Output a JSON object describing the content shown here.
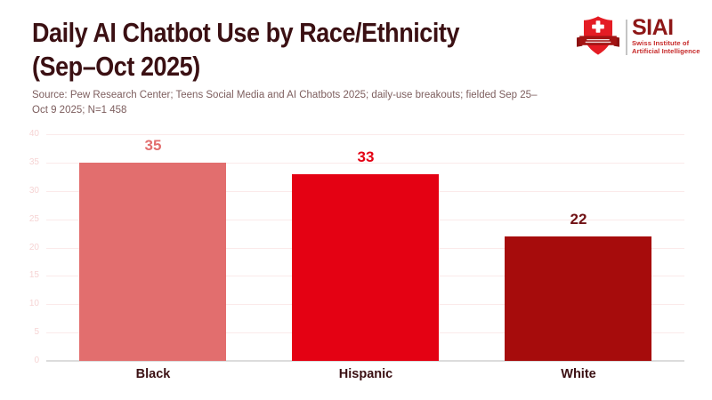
{
  "header": {
    "title_line1": "Daily AI Chatbot Use by Race/Ethnicity",
    "title_line2": "(Sep–Oct 2025)",
    "source_line1": "Source: Pew Research Center; Teens Social Media and AI Chatbots 2025; daily-use breakouts; fielded Sep 25–",
    "source_line2": "Oct 9 2025; N=1 458"
  },
  "logo": {
    "acronym": "SIAI",
    "name_line1": "Swiss Institute of",
    "name_line2": "Artificial Intelligence",
    "shield_icon": "swiss-shield-cross-icon",
    "colors": {
      "shield_red": "#e41c24",
      "ribbon_dark_red": "#a31414",
      "acronym_dark_red": "#8e1717",
      "subtitle_red": "#c62828"
    }
  },
  "chart_data": {
    "type": "bar",
    "title": "Daily AI Chatbot Use by Race/Ethnicity (Sep–Oct 2025)",
    "categories": [
      "Black",
      "Hispanic",
      "White"
    ],
    "values": [
      35,
      33,
      22
    ],
    "value_unit": "percent",
    "bar_colors": [
      "#e26e6e",
      "#e40113",
      "#a60c0c"
    ],
    "value_label_colors": [
      "#e26e6e",
      "#e40113",
      "#701114"
    ],
    "xlabel": "",
    "ylabel": "",
    "ylim": [
      0,
      40
    ],
    "ytick_step": 5,
    "grid": true,
    "grid_color": "#fbeaea",
    "tick_label_color": "#f6d4d4",
    "baseline_color": "#dcdcdc",
    "legend": "none"
  }
}
